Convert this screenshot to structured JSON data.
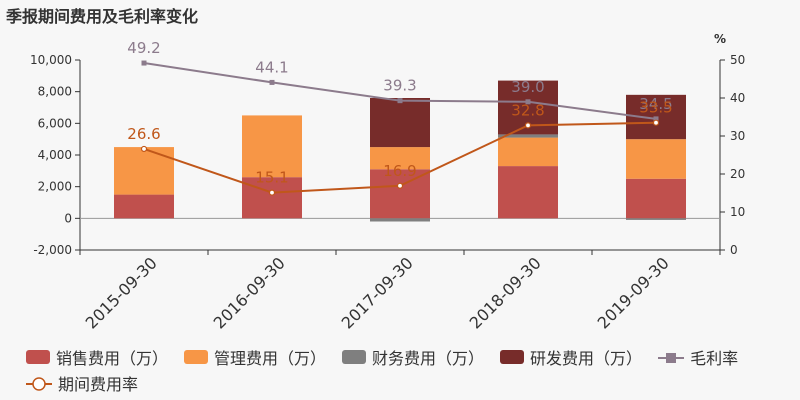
{
  "title": "季报期间费用及毛利率变化",
  "colors": {
    "sales": "#c0504d",
    "admin": "#f79646",
    "finance": "#7f7f7f",
    "rd": "#772c2a",
    "gross": "#8c7b8c",
    "period": "#c0571a"
  },
  "chart_data": {
    "type": "bar",
    "stacked": true,
    "categories": [
      "2015-09-30",
      "2016-09-30",
      "2017-09-30",
      "2018-09-30",
      "2019-09-30"
    ],
    "series": [
      {
        "name": "销售费用（万）",
        "values": [
          1500,
          2600,
          3100,
          3300,
          2500
        ]
      },
      {
        "name": "管理费用（万）",
        "values": [
          3000,
          3900,
          1400,
          1800,
          2500
        ]
      },
      {
        "name": "财务费用（万）",
        "values": [
          0,
          0,
          -200,
          200,
          -100
        ]
      },
      {
        "name": "研发费用（万）",
        "values": [
          0,
          0,
          3100,
          3400,
          2800
        ]
      }
    ],
    "line_series": [
      {
        "name": "毛利率",
        "values": [
          49.2,
          44.1,
          39.3,
          39.0,
          34.5
        ],
        "labels": [
          "49.2",
          "44.1",
          "39.3",
          "39.0",
          "34.5"
        ]
      },
      {
        "name": "期间费用率",
        "values": [
          26.6,
          15.1,
          16.9,
          32.8,
          33.5
        ],
        "labels": [
          "26.6",
          "15.1",
          "16.9",
          "32.8",
          "33.5"
        ]
      }
    ],
    "y_left": {
      "min": -2000,
      "max": 10000,
      "ticks": [
        "-2,000",
        "0",
        "2,000",
        "4,000",
        "6,000",
        "8,000",
        "10,000"
      ]
    },
    "y_right": {
      "min": 0,
      "max": 50,
      "unit": "%",
      "ticks": [
        "0",
        "10",
        "20",
        "30",
        "40",
        "50"
      ]
    },
    "legend_position": "bottom"
  }
}
